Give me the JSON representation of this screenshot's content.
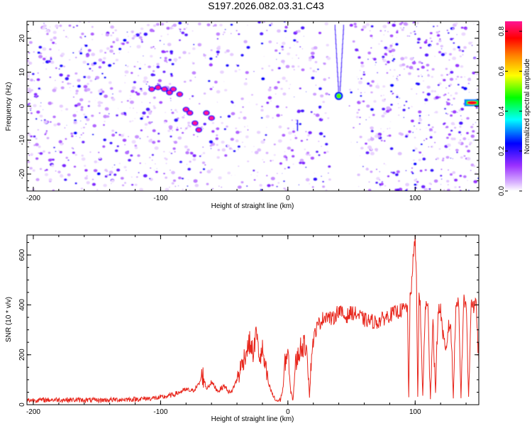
{
  "title": "S197.2026.082.03.31.C43",
  "chart_data": [
    {
      "type": "heatmap",
      "xlabel": "Height of straight line (km)",
      "ylabel": "Frequency (Hz)",
      "xlim": [
        -205,
        150
      ],
      "ylim": [
        -25,
        25
      ],
      "xticks": [
        -200,
        -100,
        0,
        100
      ],
      "yticks": [
        -20,
        -10,
        0,
        10,
        20
      ],
      "colorbar": {
        "label": "Normalized spectral amplitude",
        "range": [
          0,
          0.85
        ],
        "ticks": [
          "0.0",
          "0.2",
          "0.4",
          "0.6",
          "0.8"
        ],
        "colors": [
          "#ffffff",
          "#9b30ff",
          "#0000ff",
          "#00ffff",
          "#00ff00",
          "#ffff00",
          "#ff8000",
          "#ff0000",
          "#ff1493"
        ]
      },
      "features": [
        {
          "name": "track",
          "x": [
            -107,
            -102,
            -97,
            -93,
            -90,
            -85,
            -80,
            -77,
            -73,
            -70,
            -64,
            -60
          ],
          "y": [
            5,
            5.5,
            5,
            4,
            5,
            3.5,
            -1,
            -2,
            -5,
            -7,
            -2,
            -3.5
          ],
          "level": [
            0.32,
            0.3,
            0.34,
            0.28,
            0.33,
            0.38,
            0.4,
            0.36,
            0.3,
            0.34,
            0.2,
            0.22
          ]
        },
        {
          "name": "dip",
          "x": 40,
          "y": 3,
          "level": 0.5
        },
        {
          "name": "edge-blob",
          "x": 143,
          "y": 1,
          "level": 0.78
        }
      ]
    },
    {
      "type": "line",
      "xlabel": "Height of straight line (km)",
      "ylabel": "SNR (10 * v/v)",
      "xlim": [
        -205,
        150
      ],
      "ylim": [
        0,
        680
      ],
      "xticks": [
        -200,
        -100,
        0,
        100
      ],
      "yticks": [
        0,
        200,
        400,
        600
      ],
      "series": [
        {
          "name": "SNR",
          "color": "#e8261c",
          "x": [
            -205,
            -180,
            -150,
            -120,
            -100,
            -90,
            -80,
            -75,
            -70,
            -67,
            -64,
            -60,
            -55,
            -50,
            -45,
            -40,
            -35,
            -30,
            -27,
            -25,
            -22,
            -20,
            -18,
            -15,
            -12,
            -10,
            -8,
            -6,
            -4,
            -2,
            0,
            2,
            4,
            6,
            10,
            15,
            17,
            19,
            22,
            25,
            30,
            35,
            40,
            45,
            50,
            55,
            60,
            70,
            80,
            90,
            94,
            95,
            96,
            97,
            98,
            100,
            101,
            102,
            103,
            104,
            106,
            108,
            110,
            112,
            114,
            116,
            118,
            120,
            122,
            124,
            126,
            128,
            130,
            132,
            134,
            136,
            138,
            140,
            142,
            144,
            146,
            148,
            150
          ],
          "y": [
            18,
            20,
            18,
            22,
            28,
            40,
            60,
            55,
            80,
            120,
            65,
            90,
            55,
            75,
            45,
            100,
            180,
            250,
            200,
            300,
            180,
            220,
            150,
            80,
            40,
            20,
            15,
            20,
            60,
            180,
            210,
            60,
            20,
            160,
            230,
            240,
            30,
            230,
            300,
            330,
            360,
            340,
            380,
            350,
            370,
            360,
            340,
            330,
            360,
            380,
            390,
            20,
            420,
            470,
            560,
            660,
            500,
            30,
            430,
            390,
            30,
            400,
            390,
            30,
            350,
            40,
            380,
            380,
            270,
            190,
            310,
            320,
            30,
            410,
            420,
            30,
            420,
            410,
            30,
            420,
            390,
            400,
            170
          ]
        }
      ]
    }
  ]
}
